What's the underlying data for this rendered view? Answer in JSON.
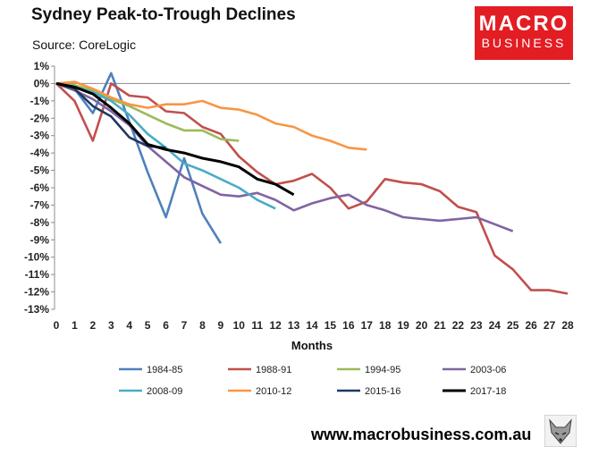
{
  "header": {
    "title": "Sydney Peak-to-Trough Declines",
    "source": "Source: CoreLogic"
  },
  "logo": {
    "line1": "MACRO",
    "line2": "BUSINESS",
    "color": "#e31d24"
  },
  "footer": {
    "url": "www.macrobusiness.com.au",
    "mascot_icon": "fox-mascot-icon"
  },
  "chart_data": {
    "type": "line",
    "title": "Sydney Peak-to-Trough Declines",
    "xlabel": "Months",
    "ylabel": "",
    "x_ticks": [
      0,
      1,
      2,
      3,
      4,
      5,
      6,
      7,
      8,
      9,
      10,
      11,
      12,
      13,
      14,
      15,
      16,
      17,
      18,
      19,
      20,
      21,
      22,
      23,
      24,
      25,
      26,
      27,
      28
    ],
    "y_ticks": [
      1,
      0,
      -1,
      -2,
      -3,
      -4,
      -5,
      -6,
      -7,
      -8,
      -9,
      -10,
      -11,
      -12,
      -13
    ],
    "y_tick_labels": [
      "1%",
      "0%",
      "-1%",
      "-2%",
      "-3%",
      "-4%",
      "-5%",
      "-6%",
      "-7%",
      "-8%",
      "-9%",
      "-10%",
      "-11%",
      "-12%",
      "-13%"
    ],
    "xlim": [
      0,
      28
    ],
    "ylim": [
      -13,
      1
    ],
    "legend_position": "bottom",
    "series": [
      {
        "name": "1984-85",
        "color": "#4f81bd",
        "x": [
          0,
          1,
          2,
          3,
          4,
          5,
          6,
          7,
          8,
          9
        ],
        "values": [
          0,
          -0.3,
          -1.7,
          0.6,
          -2.2,
          -5.1,
          -7.7,
          -4.3,
          -7.5,
          -9.2
        ]
      },
      {
        "name": "1988-91",
        "color": "#c0504d",
        "x": [
          0,
          1,
          2,
          3,
          4,
          5,
          6,
          7,
          8,
          9,
          10,
          11,
          12,
          13,
          14,
          15,
          16,
          17,
          18,
          19,
          20,
          21,
          22,
          23,
          24,
          25,
          26,
          27,
          28
        ],
        "values": [
          0,
          -1,
          -3.3,
          0,
          -0.7,
          -0.8,
          -1.6,
          -1.7,
          -2.5,
          -2.9,
          -4.2,
          -5.1,
          -5.8,
          -5.6,
          -5.2,
          -6,
          -7.2,
          -6.8,
          -5.5,
          -5.7,
          -5.8,
          -6.2,
          -7.1,
          -7.4,
          -9.9,
          -10.7,
          -11.9,
          -11.9,
          -12.1
        ]
      },
      {
        "name": "1994-95",
        "color": "#9bbb59",
        "x": [
          0,
          1,
          2,
          3,
          4,
          5,
          6,
          7,
          8,
          9,
          10
        ],
        "values": [
          0,
          -0.1,
          -0.4,
          -0.9,
          -1.3,
          -1.8,
          -2.3,
          -2.7,
          -2.7,
          -3.2,
          -3.3
        ]
      },
      {
        "name": "2003-06",
        "color": "#8064a2",
        "x": [
          0,
          1,
          2,
          3,
          4,
          5,
          6,
          7,
          8,
          9,
          10,
          11,
          12,
          13,
          14,
          15,
          16,
          17,
          18,
          19,
          20,
          21,
          22,
          23,
          24,
          25
        ],
        "values": [
          0,
          -0.4,
          -0.9,
          -1.6,
          -2.4,
          -3.6,
          -4.5,
          -5.4,
          -5.9,
          -6.4,
          -6.5,
          -6.3,
          -6.7,
          -7.3,
          -6.9,
          -6.6,
          -6.4,
          -7,
          -7.3,
          -7.7,
          -7.8,
          -7.9,
          -7.8,
          -7.7,
          -8.1,
          -8.5
        ]
      },
      {
        "name": "2008-09",
        "color": "#4bacc6",
        "x": [
          0,
          1,
          2,
          3,
          4,
          5,
          6,
          7,
          8,
          9,
          10,
          11,
          12
        ],
        "values": [
          0,
          -0.2,
          -0.5,
          -1,
          -1.8,
          -2.9,
          -3.7,
          -4.6,
          -5,
          -5.5,
          -6,
          -6.7,
          -7.2
        ]
      },
      {
        "name": "2010-12",
        "color": "#f79646",
        "x": [
          0,
          1,
          2,
          3,
          4,
          5,
          6,
          7,
          8,
          9,
          10,
          11,
          12,
          13,
          14,
          15,
          16,
          17
        ],
        "values": [
          0,
          0.1,
          -0.3,
          -0.8,
          -1.2,
          -1.4,
          -1.2,
          -1.2,
          -1,
          -1.4,
          -1.5,
          -1.8,
          -2.3,
          -2.5,
          -3,
          -3.3,
          -3.7,
          -3.8
        ]
      },
      {
        "name": "2015-16",
        "color": "#1f3864",
        "x": [
          0,
          1,
          2,
          3,
          4,
          5,
          6
        ],
        "values": [
          0,
          -0.3,
          -1.3,
          -1.9,
          -3.1,
          -3.6,
          -3.7
        ]
      },
      {
        "name": "2017-18",
        "color": "#000000",
        "x": [
          0,
          1,
          2,
          3,
          4,
          5,
          6,
          7,
          8,
          9,
          10,
          11,
          12,
          13
        ],
        "values": [
          0,
          -0.2,
          -0.6,
          -1.4,
          -2.3,
          -3.5,
          -3.8,
          -4,
          -4.3,
          -4.5,
          -4.8,
          -5.5,
          -5.8,
          -6.4
        ]
      }
    ]
  }
}
